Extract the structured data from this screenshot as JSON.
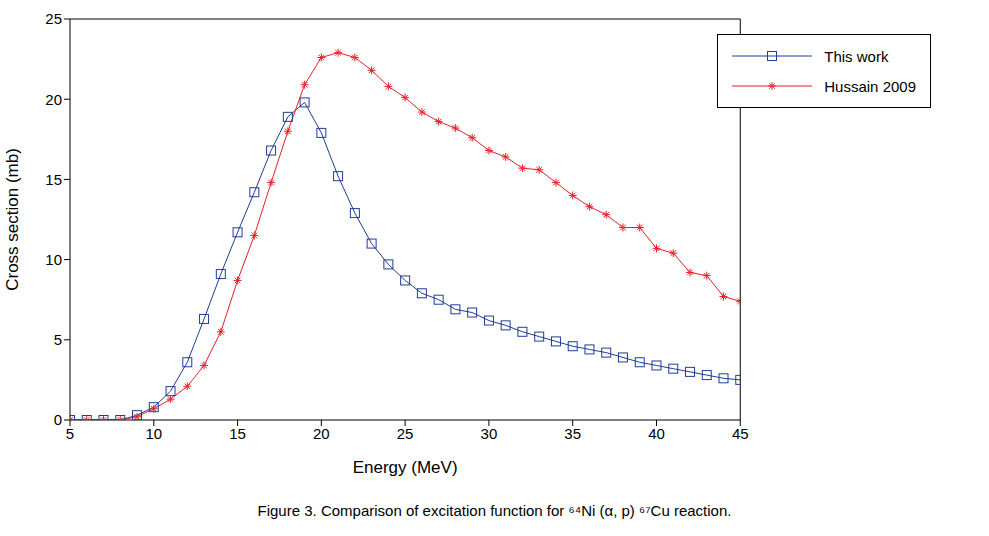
{
  "chart_data": {
    "type": "line",
    "title": "Figure 3. Comparison of excitation function for ⁶⁴Ni (α, p) ⁶⁷Cu reaction.",
    "x_label": "Energy (MeV)",
    "y_label": "Cross section (mb)",
    "x": [
      5,
      6,
      7,
      8,
      9,
      10,
      11,
      12,
      13,
      14,
      15,
      16,
      17,
      18,
      19,
      20,
      21,
      22,
      23,
      24,
      25,
      26,
      27,
      28,
      29,
      30,
      31,
      32,
      33,
      34,
      35,
      36,
      37,
      38,
      39,
      40,
      41,
      42,
      43,
      44,
      45
    ],
    "series": [
      {
        "name": "This work",
        "color": "#1f3c99",
        "marker": "square",
        "line_style": "solid",
        "values": [
          0,
          0,
          0,
          0,
          0.3,
          0.8,
          1.8,
          3.6,
          6.3,
          9.1,
          11.7,
          14.2,
          16.8,
          18.9,
          19.8,
          17.9,
          15.2,
          12.9,
          11.0,
          9.7,
          8.7,
          7.9,
          7.5,
          6.9,
          6.7,
          6.2,
          5.9,
          5.5,
          5.2,
          4.9,
          4.6,
          4.4,
          4.2,
          3.9,
          3.6,
          3.4,
          3.2,
          3.0,
          2.8,
          2.6,
          2.5
        ]
      },
      {
        "name": "Hussain 2009",
        "color": "#e8202a",
        "marker": "star",
        "line_style": "solid",
        "values": [
          0,
          0,
          0,
          0,
          0.2,
          0.7,
          1.3,
          2.1,
          3.4,
          5.5,
          8.7,
          11.5,
          14.8,
          18.0,
          20.9,
          22.6,
          22.9,
          22.6,
          21.8,
          20.8,
          20.1,
          19.2,
          18.6,
          18.2,
          17.6,
          16.8,
          16.4,
          15.7,
          15.6,
          14.8,
          14.0,
          13.3,
          12.8,
          12.0,
          12.0,
          10.7,
          10.4,
          9.2,
          9.0,
          7.7,
          7.4
        ]
      }
    ],
    "xlim": [
      5,
      45
    ],
    "xticks": [
      5,
      10,
      15,
      20,
      25,
      30,
      35,
      40,
      45
    ],
    "ylim": [
      0,
      25
    ],
    "yticks": [
      0,
      5,
      10,
      15,
      20,
      25
    ],
    "grid": false,
    "legend": "upper right"
  }
}
